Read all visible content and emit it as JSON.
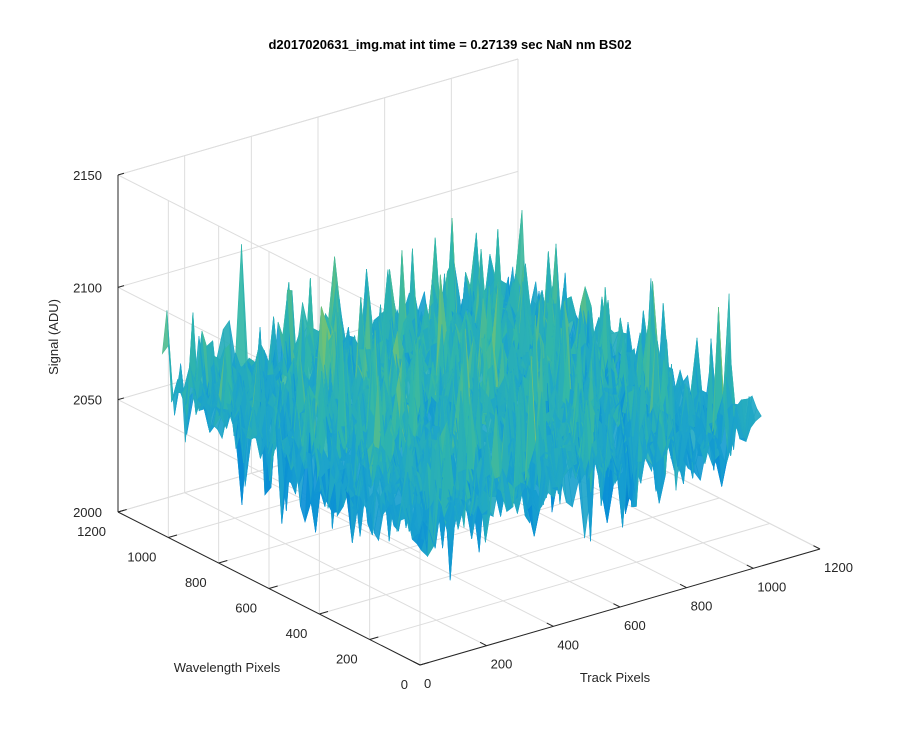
{
  "chart_data": {
    "type": "surface",
    "title": "d2017020631_img.mat int time = 0.27139 sec  NaN nm BS02",
    "xlabel": "Track Pixels",
    "ylabel": "Wavelength Pixels",
    "zlabel": "Signal (ADU)",
    "xlim": [
      0,
      1200
    ],
    "ylim": [
      0,
      1200
    ],
    "zlim": [
      2000,
      2150
    ],
    "xticks": [
      "0",
      "200",
      "400",
      "600",
      "800",
      "1000",
      "1200"
    ],
    "yticks": [
      "0",
      "200",
      "400",
      "600",
      "800",
      "1000",
      "1200"
    ],
    "zticks": [
      "2000",
      "2050",
      "2100",
      "2150"
    ],
    "data_extent": {
      "x": [
        0,
        1024
      ],
      "y": [
        0,
        1024
      ]
    },
    "signal_mean": 2062,
    "signal_min": 2020,
    "signal_max": 2128,
    "colormap": "parula",
    "colors": [
      "#0072BD",
      "#0A8FD6",
      "#1CA3CC",
      "#32B7A8",
      "#7FC46A",
      "#C8C43A"
    ],
    "grid": true
  }
}
